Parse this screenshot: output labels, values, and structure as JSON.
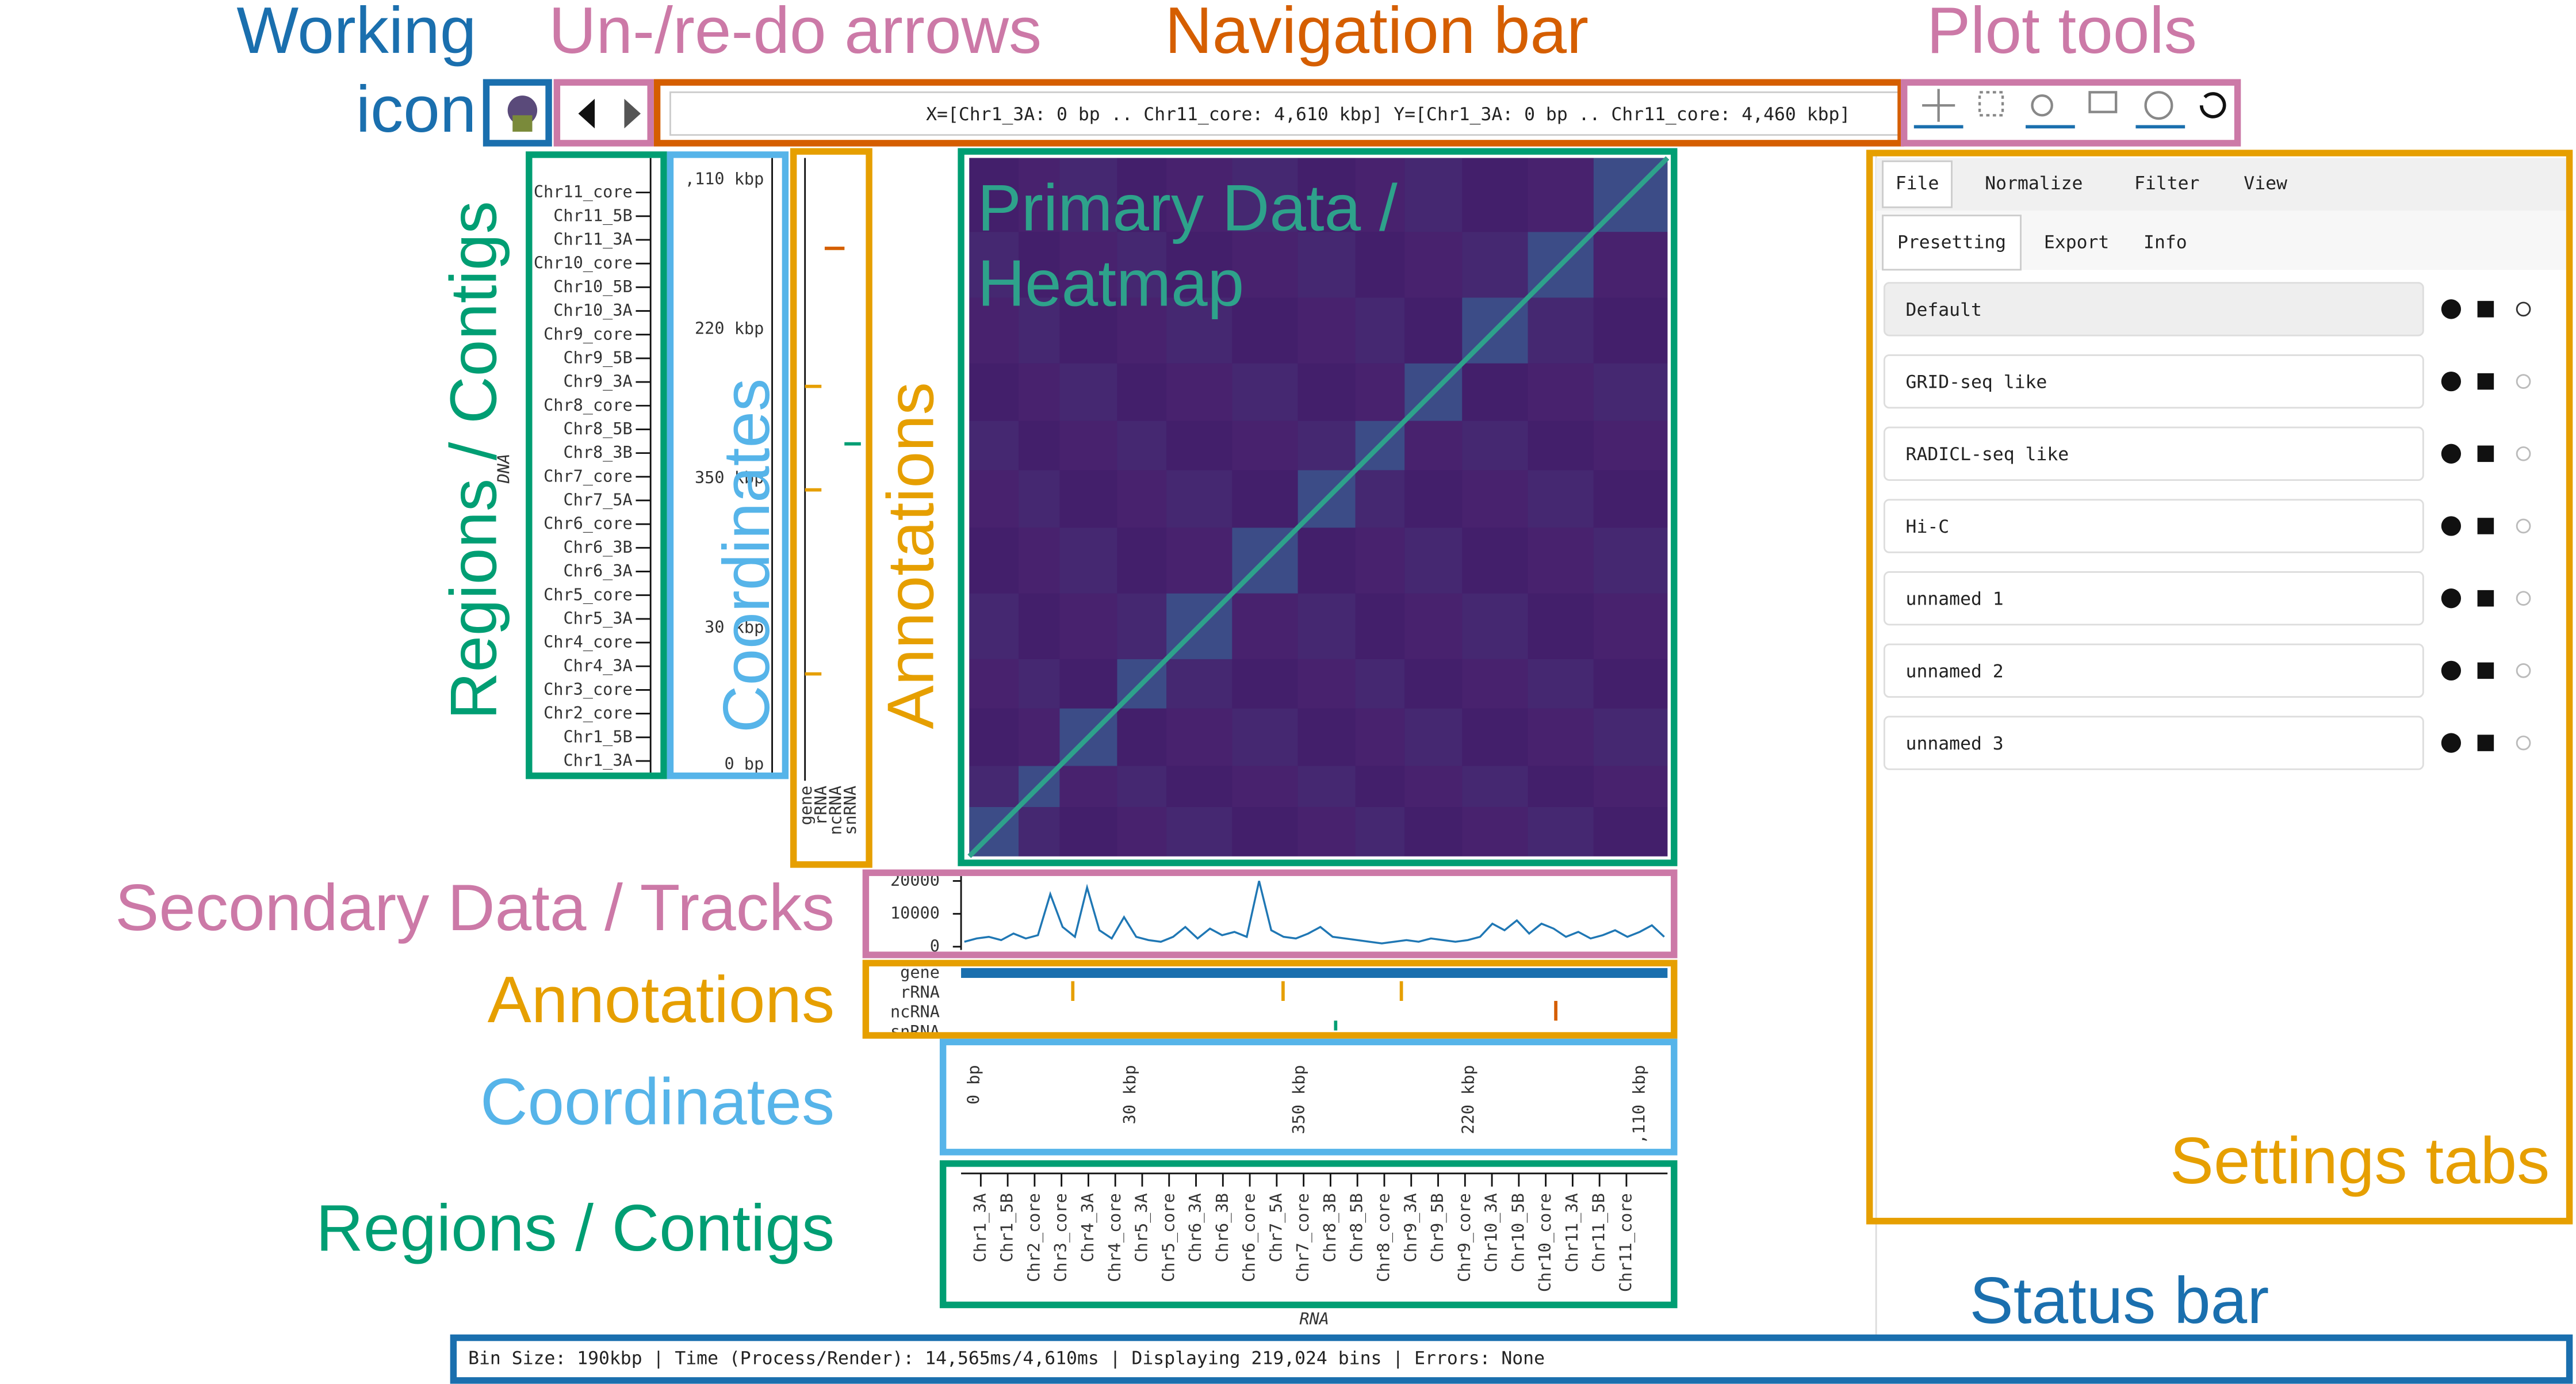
{
  "callouts": {
    "working_icon": [
      "Working",
      "icon"
    ],
    "undo_redo": "Un-/re-do arrows",
    "navigation_bar": "Navigation bar",
    "plot_tools": "Plot tools",
    "regions_left": "Regions / Contigs",
    "coordinates_left": "Coordinates",
    "annotations_left": "Annotations",
    "heatmap": [
      "Primary Data /",
      "Heatmap"
    ],
    "tracks": "Secondary Data / Tracks",
    "annotations_bottom": "Annotations",
    "coordinates_bottom": "Coordinates",
    "regions_bottom": "Regions / Contigs",
    "settings_tabs": "Settings tabs",
    "status_bar": "Status bar"
  },
  "ui": {
    "navigation_bar": "X=[Chr1_3A: 0 bp .. Chr11_core: 4,610 kbp] Y=[Chr1_3A: 0 bp .. Chr11_core: 4,460 kbp]",
    "y_axis_label": "DNA",
    "x_axis_label": "RNA",
    "y_contigs": [
      "Chr11_core",
      "Chr11_5B",
      "Chr11_3A",
      "Chr10_core",
      "Chr10_5B",
      "Chr10_3A",
      "Chr9_core",
      "Chr9_5B",
      "Chr9_3A",
      "Chr8_core",
      "Chr8_5B",
      "Chr8_3B",
      "Chr7_core",
      "Chr7_5A",
      "Chr6_core",
      "Chr6_3B",
      "Chr6_3A",
      "Chr5_core",
      "Chr5_3A",
      "Chr4_core",
      "Chr4_3A",
      "Chr3_core",
      "Chr2_core",
      "Chr1_5B",
      "Chr1_3A"
    ],
    "x_contigs": [
      "Chr1_3A",
      "Chr1_5B",
      "Chr2_core",
      "Chr3_core",
      "Chr4_3A",
      "Chr4_core",
      "Chr5_3A",
      "Chr5_core",
      "Chr6_3A",
      "Chr6_3B",
      "Chr6_core",
      "Chr7_5A",
      "Chr7_core",
      "Chr8_3B",
      "Chr8_5B",
      "Chr8_core",
      "Chr9_3A",
      "Chr9_5B",
      "Chr9_core",
      "Chr10_3A",
      "Chr10_5B",
      "Chr10_core",
      "Chr11_3A",
      "Chr11_5B",
      "Chr11_core"
    ],
    "y_coordinates": [
      ",110 kbp",
      "220 kbp",
      "350 kbp",
      "30 kbp",
      "0 bp"
    ],
    "x_coordinates": [
      "0 bp",
      "30 kbp",
      "350 kbp",
      "220 kbp",
      ",110 kbp"
    ],
    "annotation_tracks": [
      "gene",
      "rRNA",
      "ncRNA",
      "snRNA"
    ],
    "main_tabs": [
      "File",
      "Normalize",
      "Filter",
      "View"
    ],
    "sub_tabs": [
      "Presetting",
      "Export",
      "Info"
    ],
    "presets": [
      "Default",
      "GRID-seq like",
      "RADICL-seq like",
      "Hi-C",
      "unnamed 1",
      "unnamed 2",
      "unnamed 3"
    ],
    "status_bar": "Bin Size: 190kbp | Time (Process/Render): 14,565ms/4,610ms | Displaying 219,024 bins | Errors: None"
  },
  "track": {
    "ylim": [
      0,
      22000
    ],
    "yticks": [
      0,
      10000,
      20000
    ],
    "color": "#1f77b4",
    "values": [
      1500,
      2500,
      3000,
      2000,
      4000,
      2500,
      3500,
      16000,
      6000,
      3000,
      18000,
      5000,
      2500,
      9000,
      3000,
      2000,
      1500,
      3000,
      6000,
      2500,
      5500,
      3500,
      4500,
      3000,
      20000,
      5000,
      3000,
      2500,
      4000,
      6000,
      3000,
      2500,
      2000,
      1500,
      1000,
      1500,
      2000,
      1500,
      2500,
      2000,
      1500,
      2000,
      3000,
      7000,
      5000,
      8000,
      4000,
      7000,
      5500,
      3000,
      4500,
      2500,
      3500,
      5000,
      3000,
      4500,
      6500,
      3000
    ]
  }
}
